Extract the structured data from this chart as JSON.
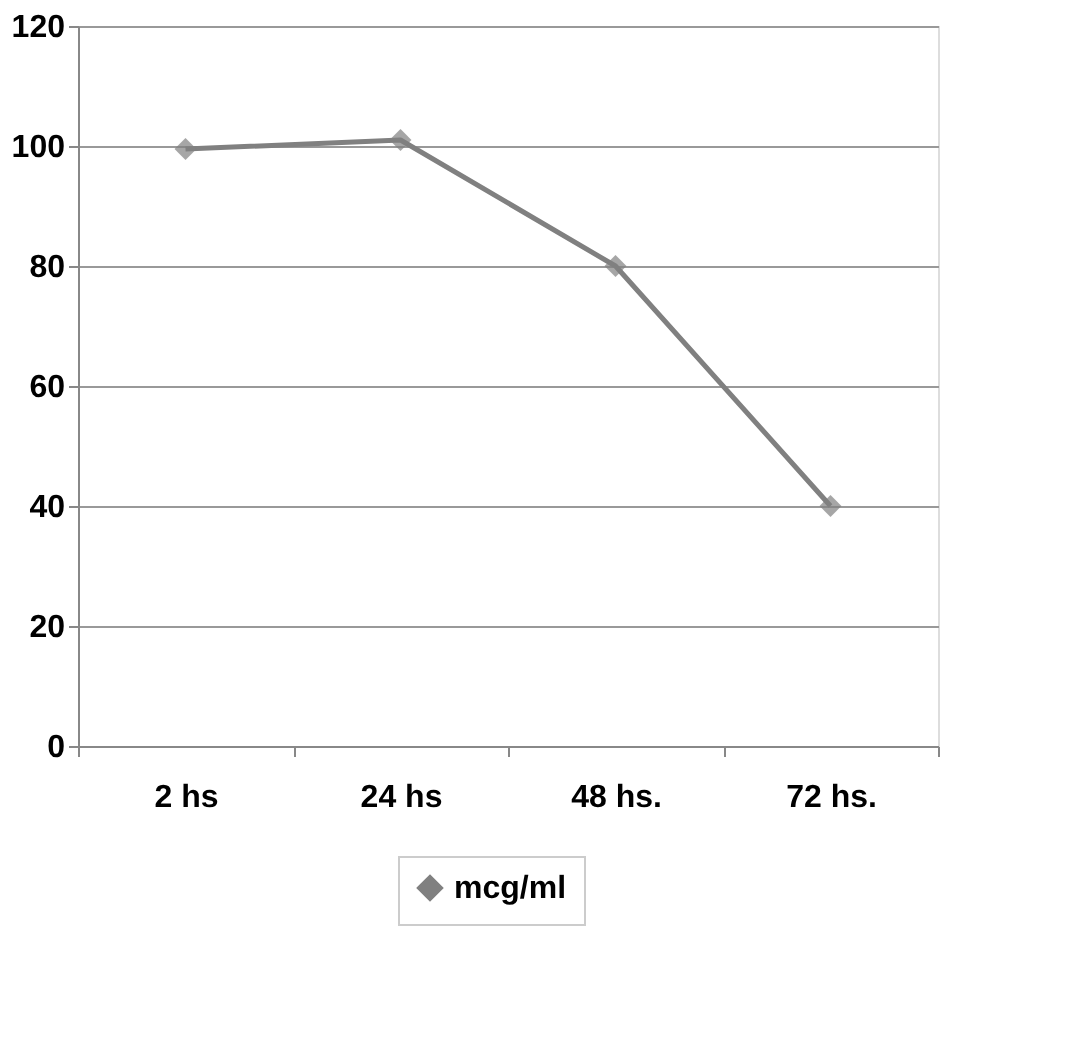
{
  "chart_data": {
    "type": "line",
    "categories": [
      "2 hs",
      "24 hs",
      "48 hs.",
      "72 hs."
    ],
    "series": [
      {
        "name": "mcg/ml",
        "color": "#808080",
        "values": [
          99.5,
          101,
          80,
          40
        ]
      }
    ],
    "ylim": [
      0,
      120
    ],
    "yticks": [
      0,
      20,
      40,
      60,
      80,
      100,
      120
    ],
    "grid": "y",
    "legend": "bottom",
    "marker": "diamond",
    "line_style": "solid"
  }
}
